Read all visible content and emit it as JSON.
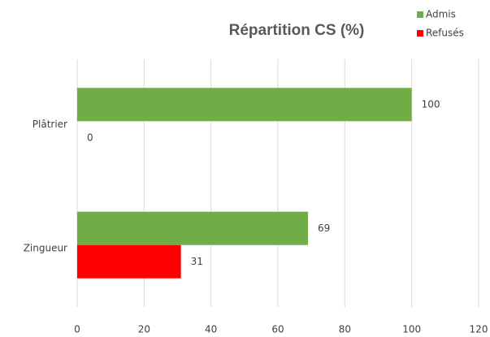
{
  "chart_data": {
    "type": "hbar",
    "title": "Répartition CS (%)",
    "categories": [
      "Plâtrier",
      "Zingueur"
    ],
    "series": [
      {
        "name": "Admis",
        "color": "#70ad47",
        "values": [
          100,
          69
        ]
      },
      {
        "name": "Refusés",
        "color": "#ff0000",
        "values": [
          0,
          31
        ]
      }
    ],
    "xlim": [
      0,
      120
    ],
    "xticks": [
      0,
      20,
      40,
      60,
      80,
      100,
      120
    ],
    "grid": true,
    "legend": "top-right"
  }
}
